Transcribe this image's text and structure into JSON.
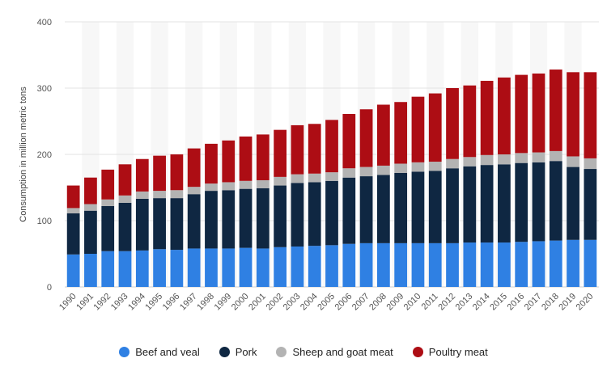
{
  "chart_data": {
    "type": "bar",
    "stacked": true,
    "categories": [
      "1990",
      "1991",
      "1992",
      "1993",
      "1994",
      "1995",
      "1996",
      "1997",
      "1998",
      "1999",
      "2000",
      "2001",
      "2002",
      "2003",
      "2004",
      "2005",
      "2006",
      "2007",
      "2008",
      "2009",
      "2010",
      "2011",
      "2012",
      "2013",
      "2014",
      "2015",
      "2016",
      "2017",
      "2018",
      "2019",
      "2020"
    ],
    "series": [
      {
        "name": "Beef and veal",
        "color": "#2f80e3",
        "values": [
          49,
          50,
          54,
          54,
          55,
          57,
          56,
          58,
          58,
          58,
          59,
          58,
          60,
          61,
          62,
          63,
          65,
          66,
          66,
          66,
          66,
          66,
          66,
          67,
          67,
          67,
          68,
          69,
          70,
          71,
          71
        ]
      },
      {
        "name": "Pork",
        "color": "#0f2742",
        "values": [
          62,
          65,
          68,
          73,
          78,
          77,
          78,
          82,
          87,
          88,
          89,
          91,
          93,
          96,
          96,
          97,
          100,
          101,
          103,
          106,
          108,
          109,
          113,
          115,
          117,
          118,
          119,
          119,
          120,
          110,
          107
        ]
      },
      {
        "name": "Sheep and goat meat",
        "color": "#b3b3b3",
        "values": [
          8,
          10,
          10,
          11,
          11,
          11,
          12,
          11,
          11,
          12,
          12,
          12,
          13,
          13,
          13,
          13,
          14,
          14,
          14,
          14,
          14,
          14,
          14,
          14,
          15,
          15,
          15,
          15,
          15,
          16,
          16
        ]
      },
      {
        "name": "Poultry meat",
        "color": "#ad0d14",
        "values": [
          34,
          40,
          45,
          47,
          49,
          53,
          54,
          58,
          60,
          63,
          67,
          69,
          71,
          74,
          75,
          79,
          82,
          87,
          92,
          93,
          99,
          103,
          107,
          108,
          112,
          116,
          118,
          119,
          123,
          127,
          130
        ]
      }
    ],
    "xlabel": "",
    "ylabel": "Consumption in million metric tons",
    "ylim": [
      0,
      400
    ],
    "yticks": [
      0,
      100,
      200,
      300,
      400
    ],
    "grid": true,
    "legend_position": "bottom"
  }
}
